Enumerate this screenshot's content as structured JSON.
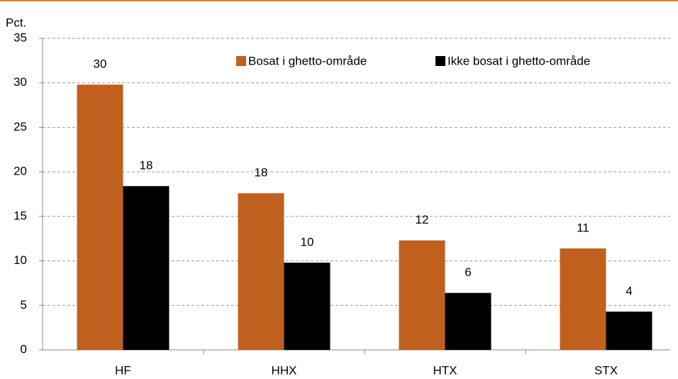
{
  "chart_data": {
    "type": "bar",
    "y_label": "Pct.",
    "categories": [
      "HF",
      "HHX",
      "HTX",
      "STX"
    ],
    "series": [
      {
        "name": "Bosat i ghetto-område",
        "color": "#c0601e",
        "values": [
          29.8,
          17.6,
          12.3,
          11.4
        ],
        "value_labels": [
          "30",
          "18",
          "12",
          "11"
        ]
      },
      {
        "name": "Ikke bosat i ghetto-område",
        "color": "#000000",
        "values": [
          18.4,
          9.8,
          6.4,
          4.3
        ],
        "value_labels": [
          "18",
          "10",
          "6",
          "4"
        ]
      }
    ],
    "ylim": [
      0,
      35
    ],
    "yticks": [
      0,
      5,
      10,
      15,
      20,
      25,
      30,
      35
    ],
    "grid": true,
    "legend": "top-right"
  }
}
